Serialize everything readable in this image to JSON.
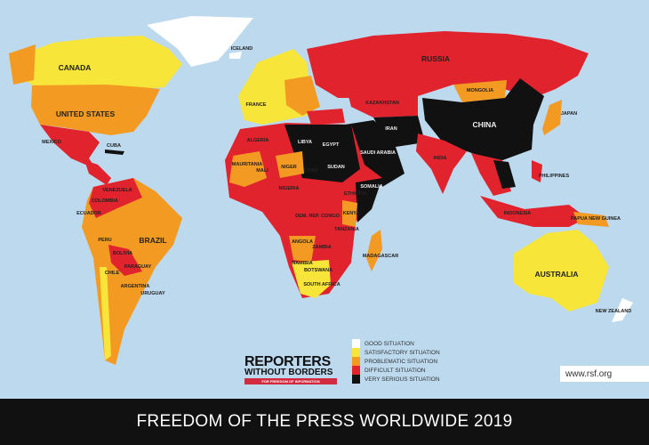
{
  "title": "FREEDOM OF THE PRESS WORLDWIDE 2019",
  "colors": {
    "ocean": "#bcd9ee",
    "good": "#ffffff",
    "satisfactory": "#f8e53a",
    "problematic": "#f39a22",
    "difficult": "#e1232e",
    "very_serious": "#111111"
  },
  "logo": {
    "line1": "REPORTERS",
    "line2": "WITHOUT BORDERS",
    "tagline": "FOR FREEDOM OF INFORMATION"
  },
  "legend": [
    {
      "label": "GOOD SITUATION",
      "color": "#ffffff"
    },
    {
      "label": "SATISFACTORY SITUATION",
      "color": "#f8e53a"
    },
    {
      "label": "PROBLEMATIC SITUATION",
      "color": "#f39a22"
    },
    {
      "label": "DIFFICULT SITUATION",
      "color": "#e1232e"
    },
    {
      "label": "VERY SERIOUS SITUATION",
      "color": "#111111"
    }
  ],
  "url": "www.rsf.org",
  "countries": {
    "canada": "CANADA",
    "usa": "UNITED STATES",
    "mexico": "MEXICO",
    "cuba": "CUBA",
    "venezuela": "VENEZUELA",
    "colombia": "COLOMBIA",
    "ecuador": "ECUADOR",
    "peru": "PERU",
    "brazil": "BRAZIL",
    "bolivia": "BOLIVIA",
    "paraguay": "PARAGUAY",
    "chile": "CHILE",
    "argentina": "ARGENTINA",
    "uruguay": "URUGUAY",
    "iceland": "ICELAND",
    "france": "FRANCE",
    "russia": "RUSSIA",
    "kazakhstan": "KAZAKHSTAN",
    "mongolia": "MONGOLIA",
    "china": "CHINA",
    "japan": "JAPAN",
    "india": "INDIA",
    "philippines": "PHILIPPINES",
    "indonesia": "INDONESIA",
    "australia": "AUSTRALIA",
    "new_zealand": "NEW ZEALAND",
    "algeria": "ALGERIA",
    "libya": "LIBYA",
    "egypt": "EGYPT",
    "mauritania": "MAURITANIA",
    "mali": "MALI",
    "niger": "NIGER",
    "chad": "CHAD",
    "sudan": "SUDAN",
    "nigeria": "NIGERIA",
    "ethiopia": "ETHIOPIA",
    "somalia": "SOMALIA",
    "kenya": "KENYA",
    "dr_congo": "DEM. REP. CONGO",
    "tanzania": "TANZANIA",
    "angola": "ANGOLA",
    "zambia": "ZAMBIA",
    "namibia": "NAMIBIA",
    "botswana": "BOTSWANA",
    "south_africa": "SOUTH AFRICA",
    "madagascar": "MADAGASCAR",
    "saudi_arabia": "SAUDI ARABIA",
    "iran": "IRAN",
    "papua_new_guinea": "PAPUA NEW GUINEA"
  }
}
